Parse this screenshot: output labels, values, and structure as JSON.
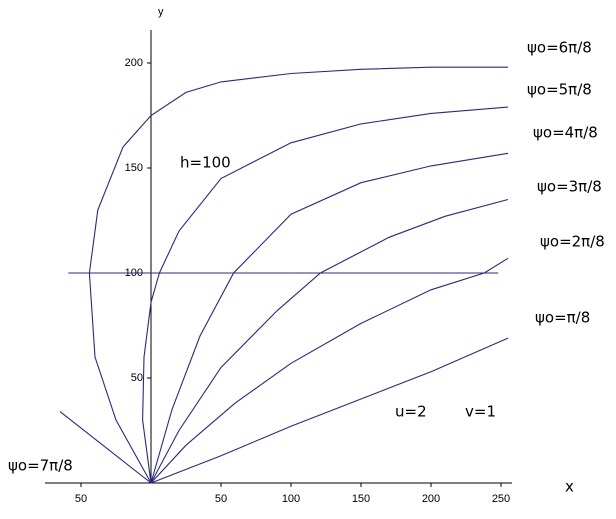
{
  "chart_data": {
    "type": "line",
    "xlabel": "x",
    "ylabel": "y",
    "xlim": [
      -65,
      255
    ],
    "ylim": [
      0,
      220
    ],
    "xticks": [
      {
        "value": -50,
        "label": "50"
      },
      50,
      100,
      150,
      200,
      250
    ],
    "yticks": [
      50,
      100,
      150,
      200
    ],
    "annotations": [
      "u=2",
      "v=1"
    ],
    "series": [
      {
        "name": "ψo=6π/8",
        "color": "#28288a",
        "x": [
          0,
          -25,
          -40,
          -44,
          -38,
          -20,
          0,
          25,
          50,
          100,
          150,
          200,
          255
        ],
        "values": [
          0,
          30,
          60,
          100,
          130,
          160,
          175,
          186,
          191,
          195,
          197,
          198,
          198
        ]
      },
      {
        "name": "ψo=5π/8",
        "color": "#28288a",
        "x": [
          0,
          -6,
          -5,
          0,
          6,
          20,
          50,
          100,
          150,
          200,
          255
        ],
        "values": [
          0,
          30,
          60,
          86,
          100,
          120,
          145,
          162,
          171,
          176,
          179
        ]
      },
      {
        "name": "ψo=4π/8",
        "color": "#28288a",
        "x": [
          0,
          15,
          35,
          59,
          100,
          150,
          200,
          255
        ],
        "values": [
          0,
          35,
          70,
          100,
          128,
          143,
          151,
          157
        ]
      },
      {
        "name": "ψo=3π/8",
        "color": "#28288a",
        "x": [
          0,
          20,
          50,
          90,
          121,
          170,
          210,
          255
        ],
        "values": [
          0,
          25,
          55,
          82,
          100,
          117,
          127,
          135
        ]
      },
      {
        "name": "ψo=2π/8",
        "color": "#28288a",
        "x": [
          0,
          25,
          60,
          100,
          150,
          200,
          238,
          255
        ],
        "values": [
          0,
          18,
          38,
          57,
          76,
          92,
          100,
          107
        ]
      },
      {
        "name": "ψo=π/8",
        "color": "#28288a",
        "x": [
          0,
          50,
          100,
          150,
          200,
          255
        ],
        "values": [
          0,
          13,
          27,
          40,
          53,
          69
        ]
      },
      {
        "name": "ψo=7π/8",
        "color": "#28288a",
        "x": [
          0,
          -65
        ],
        "values": [
          0,
          34
        ]
      },
      {
        "name": "h=100",
        "color": "#28288a",
        "x": [
          -59,
          248
        ],
        "values": [
          100,
          100
        ]
      }
    ]
  }
}
